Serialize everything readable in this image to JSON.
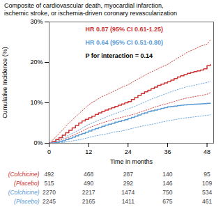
{
  "chart_data": {
    "type": "line",
    "title": "Composite of cardiovascular death, myocardial infarction,",
    "subtitle": "ischemic stroke, or ischemia-driven coronary revascularization",
    "x_label": "Time in months",
    "y_label": "Cumulative Incidence (%)",
    "xlim": [
      0,
      50
    ],
    "ylim": [
      0,
      30
    ],
    "xticks": [
      0,
      12,
      24,
      36,
      48
    ],
    "yticks": [
      {
        "value": 0,
        "label": "0%"
      },
      {
        "value": 10,
        "label": "10%"
      },
      {
        "value": 20,
        "label": "20%"
      },
      {
        "value": 30,
        "label": "30%"
      }
    ],
    "series": [
      {
        "color": "#cc3333",
        "type": "line",
        "line_style": "dotted",
        "x": [
          0,
          2,
          4,
          6,
          8,
          10,
          12,
          14,
          16,
          18,
          20,
          22,
          24,
          26,
          28,
          30,
          32,
          34,
          36,
          38,
          40,
          42,
          44,
          46,
          48,
          49
        ],
        "values": [
          0,
          1.5,
          3.2,
          5.0,
          6.5,
          8.0,
          9.5,
          10.5,
          11.5,
          12.2,
          13.0,
          13.8,
          14.5,
          15.4,
          16.3,
          17.2,
          18.0,
          18.8,
          19.5,
          20.5,
          21.5,
          22.5,
          23.2,
          24.0,
          24.5,
          25.5
        ]
      },
      {
        "color": "#cc3333",
        "type": "line",
        "line_style": "dotted",
        "x": [
          0,
          2,
          4,
          6,
          8,
          10,
          12,
          14,
          16,
          18,
          20,
          22,
          24,
          26,
          28,
          30,
          32,
          34,
          36,
          38,
          40,
          42,
          44,
          46,
          48,
          49
        ],
        "values": [
          0,
          0.3,
          0.9,
          1.5,
          2.2,
          3.0,
          3.8,
          4.4,
          5.0,
          5.5,
          6.0,
          6.4,
          6.8,
          7.2,
          7.8,
          8.3,
          8.9,
          9.4,
          9.8,
          10.3,
          10.8,
          11.2,
          11.5,
          11.8,
          12.1,
          12.5
        ]
      },
      {
        "color": "#5b9bd5",
        "type": "line",
        "line_style": "dotted",
        "x": [
          0,
          2,
          4,
          6,
          8,
          10,
          12,
          14,
          16,
          18,
          20,
          22,
          24,
          26,
          28,
          30,
          32,
          34,
          36,
          38,
          40,
          42,
          44,
          46,
          48,
          49
        ],
        "values": [
          0,
          0.5,
          1.2,
          2.0,
          2.8,
          3.7,
          4.6,
          5.3,
          6.0,
          6.7,
          7.3,
          7.9,
          8.5,
          9.1,
          9.8,
          10.5,
          11.2,
          11.8,
          12.4,
          13.0,
          13.5,
          14.0,
          14.3,
          14.7,
          15.0,
          15.3
        ]
      },
      {
        "color": "#5b9bd5",
        "type": "line",
        "line_style": "dotted",
        "x": [
          0,
          2,
          4,
          6,
          8,
          10,
          12,
          14,
          16,
          18,
          20,
          22,
          24,
          26,
          28,
          30,
          32,
          34,
          36,
          38,
          40,
          42,
          44,
          46,
          48,
          49
        ],
        "values": [
          0,
          0.05,
          0.15,
          0.4,
          0.7,
          1.0,
          1.4,
          1.8,
          2.1,
          2.4,
          2.8,
          3.0,
          3.4,
          3.8,
          4.2,
          4.5,
          4.8,
          5.2,
          5.5,
          5.8,
          6.1,
          6.3,
          6.5,
          6.7,
          6.9,
          7.0
        ]
      },
      {
        "color": "#cc3333",
        "type": "step",
        "line_style": "solid",
        "x": [
          0,
          1,
          2,
          3,
          4,
          5,
          6,
          7,
          8,
          9,
          10,
          11,
          12,
          13,
          14,
          15,
          16,
          17,
          18,
          19,
          20,
          21,
          22,
          23,
          24,
          25,
          26,
          27,
          28,
          29,
          30,
          31,
          32,
          33,
          34,
          35,
          36,
          37,
          38,
          39,
          40,
          41,
          42,
          43,
          44,
          45,
          46,
          47,
          48,
          49
        ],
        "values": [
          0,
          0.4,
          0.9,
          1.4,
          2.0,
          2.6,
          3.2,
          3.8,
          4.4,
          5.0,
          5.5,
          5.9,
          6.3,
          6.7,
          7.1,
          7.5,
          7.9,
          8.2,
          8.5,
          8.8,
          9.1,
          9.4,
          9.7,
          10.0,
          10.3,
          10.8,
          11.3,
          11.8,
          12.3,
          12.7,
          13.1,
          13.5,
          13.9,
          14.3,
          14.6,
          14.9,
          15.2,
          15.6,
          16.0,
          16.4,
          16.7,
          17.0,
          17.3,
          17.5,
          17.7,
          17.9,
          18.1,
          18.4,
          19.2,
          19.5
        ]
      },
      {
        "color": "#5b9bd5",
        "type": "step",
        "line_style": "solid",
        "x": [
          0,
          1,
          2,
          3,
          4,
          5,
          6,
          7,
          8,
          9,
          10,
          11,
          12,
          13,
          14,
          15,
          16,
          17,
          18,
          19,
          20,
          21,
          22,
          23,
          24,
          25,
          26,
          27,
          28,
          29,
          30,
          31,
          32,
          33,
          34,
          35,
          36,
          37,
          38,
          39,
          40,
          41,
          42,
          43,
          44,
          45,
          46,
          47,
          48,
          49
        ],
        "values": [
          0,
          0.1,
          0.2,
          0.4,
          0.6,
          0.9,
          1.2,
          1.5,
          1.8,
          2.1,
          2.4,
          2.7,
          3.0,
          3.3,
          3.6,
          3.9,
          4.2,
          4.5,
          4.7,
          4.9,
          5.2,
          5.4,
          5.6,
          5.8,
          6.1,
          6.4,
          6.7,
          7.0,
          7.3,
          7.5,
          7.8,
          8.0,
          8.2,
          8.4,
          8.6,
          8.8,
          9.0,
          9.1,
          9.2,
          9.3,
          9.4,
          9.5,
          9.55,
          9.6,
          9.65,
          9.7,
          9.75,
          9.8,
          9.85,
          9.9
        ]
      }
    ],
    "annotations": [
      {
        "text": "HR 0.87 (95% CI 0.61-1.25)",
        "color": "#cc3333"
      },
      {
        "text": "HR 0.64 (95% CI 0.51-0.80)",
        "color": "#5b9bd5"
      },
      {
        "text": "P for interaction = 0.14",
        "color": "#000000"
      }
    ],
    "table": {
      "x": [
        0,
        12,
        24,
        36,
        48
      ],
      "rows": [
        {
          "label": "(Colchicine)",
          "color": "#cc3333",
          "values": [
            492,
            468,
            287,
            140,
            95
          ]
        },
        {
          "label": "(Placebo)",
          "color": "#cc3333",
          "values": [
            515,
            490,
            292,
            146,
            109
          ]
        },
        {
          "label": "(Colchicine)",
          "color": "#5b9bd5",
          "values": [
            2270,
            2217,
            1474,
            750,
            534
          ]
        },
        {
          "label": "(Placebo)",
          "color": "#5b9bd5",
          "values": [
            2245,
            2165,
            1411,
            675,
            461
          ]
        }
      ]
    }
  }
}
